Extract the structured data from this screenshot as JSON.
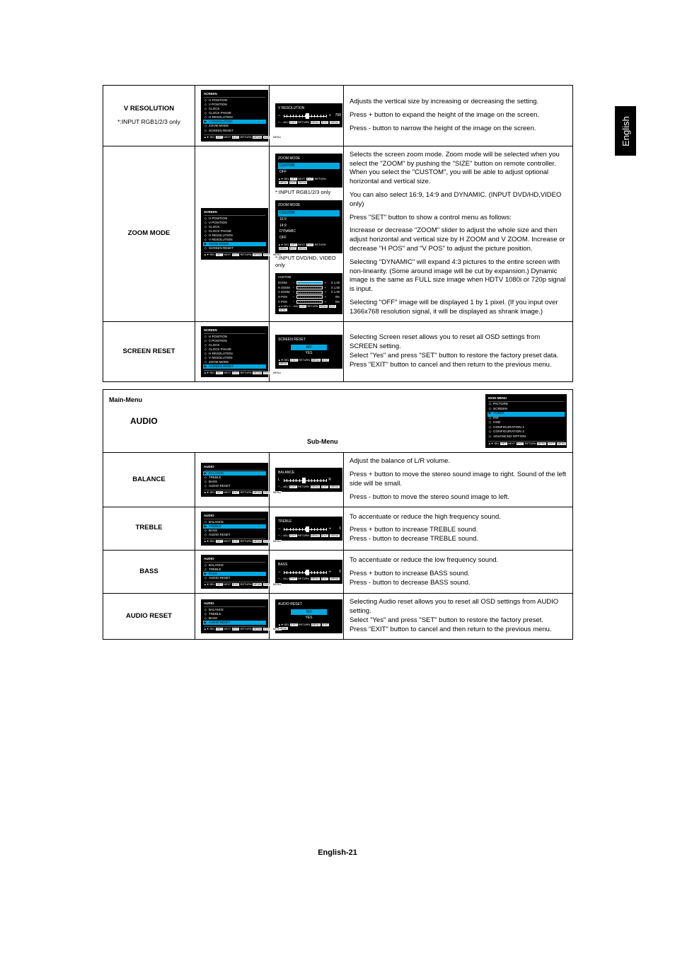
{
  "side_tab": "English",
  "page_number": "English-21",
  "colors": {
    "highlight": "#00a9e0",
    "panel_bg": "#000000",
    "panel_fg": "#ffffff"
  },
  "screen_menu": {
    "header": "SCREEN",
    "items": [
      "H POSITION",
      "V POSITION",
      "CLOCK",
      "CLOCK PHASE",
      "H RESOLUTION",
      "V RESOLUTION",
      "ZOOM MODE",
      "SCREEN RESET"
    ],
    "footer": "▲▼:SEL SET:NEXT EXIT:RETURN MENU:EXIT MENU"
  },
  "rows_screen": [
    {
      "title": "V RESOLUTION",
      "sub": "*:INPUT RGB1/2/3 only",
      "menu_hl": "V RESOLUTION",
      "right": {
        "type": "slider",
        "title": "V RESOLUTION",
        "knob_pct": 50,
        "value": "768",
        "minus": "−",
        "plus": "+"
      },
      "desc": [
        "Adjusts the vertical size by increasing or decreasing the setting.",
        "Press + button to expand the height of the image on the screen.",
        "Press - button to narrow the height of the image on the screen."
      ]
    },
    {
      "title": "ZOOM MODE",
      "menu_hl": "ZOOM MODE",
      "right_stack": [
        {
          "type": "optbox",
          "title": "ZOOM MODE",
          "opts": [
            "CUSTOM",
            "OFF"
          ],
          "hl": "CUSTOM",
          "caption": "*:INPUT RGB1/2/3 only"
        },
        {
          "type": "optbox",
          "title": "ZOOM MODE",
          "opts": [
            "CUSTOM",
            "16:9",
            "14:9",
            "DYNAMIC",
            "OFF"
          ],
          "hl": "CUSTOM",
          "caption": "*:INPUT DVD/HD, VIDEO only"
        },
        {
          "type": "zoomsliders",
          "title": "CUSTOM",
          "rows": [
            {
              "lbl": "ZOOM",
              "v": "X 1.00",
              "first": true
            },
            {
              "lbl": "H ZOOM",
              "v": "X 1.00"
            },
            {
              "lbl": "V ZOOM",
              "v": "X 1.00"
            },
            {
              "lbl": "H POS",
              "v": "0%"
            },
            {
              "lbl": "V POS",
              "v": "0%"
            }
          ]
        }
      ],
      "desc": [
        "Selects the screen zoom mode. Zoom mode will be selected when you select the \"ZOOM\" by pushing the \"SIZE\" button on remote controller.\nWhen you select the \"CUSTOM\", you will be able to adjust optional horizontal and vertical size.",
        "You can also select 16:9, 14:9 and DYNAMIC. (INPUT DVD/HD,VIDEO only)",
        "Press \"SET\" button to show a control menu as follows:",
        "Increase or decrease \"ZOOM\" slider to adjust the whole size and then adjust horizontal and vertical size by H ZOOM and V ZOOM. Increase or decrease \"H POS\" and \"V POS\" to adjust the picture position.",
        "Selecting \"DYNAMIC\" will expand 4:3 pictures to the entire screen with non-linearity. (Some around image will be cut by expansion.) Dynamic image is the same as FULL size image when HDTV 1080i or 720p signal is input.",
        "Selecting \"OFF\" image will be displayed 1 by 1 pixel. (If you input over 1366x768 resolution signal, it will be displayed as shrank image.)"
      ]
    },
    {
      "title": "SCREEN RESET",
      "menu_hl": "SCREEN RESET",
      "right": {
        "type": "yesno",
        "title": "SCREEN RESET",
        "opts": [
          "NO",
          "YES"
        ],
        "hl": "NO"
      },
      "desc": [
        "Selecting Screen reset allows you to reset all OSD settings from SCREEN setting.\nSelect \"Yes\" and press \"SET\" button to restore the factory preset data.\nPress \"EXIT\" button to cancel and then return to the previous menu."
      ]
    }
  ],
  "main_menu_panel": {
    "main_label": "Main-Menu",
    "audio_label": "AUDIO",
    "sub_label": "Sub-Menu",
    "header": "MAIN MENU",
    "items": [
      "PICTURE",
      "SCREEN",
      "AUDIO",
      "PIP",
      "OSD",
      "CONFIGURATION 1",
      "CONFIGURATION 2",
      "ADVANCED OPTION"
    ],
    "hl": "AUDIO",
    "footer": "▲▼:SEL SET:NEXT EXIT:RETURN MENU:EXIT MENU"
  },
  "audio_menu": {
    "header": "AUDIO",
    "items": [
      "BALANCE",
      "TREBLE",
      "BASS",
      "AUDIO RESET"
    ],
    "footer": "▲▼:SEL SET:NEXT EXIT:RETURN MENU:EXIT MENU"
  },
  "rows_audio": [
    {
      "title": "BALANCE",
      "menu_hl": "BALANCE",
      "right": {
        "type": "slider",
        "title": "BALANCE",
        "knob_pct": 42,
        "left_lbl": "L",
        "right_lbl": "R",
        "minus": "",
        "plus": "",
        "value": ""
      },
      "desc": [
        "Adjust the balance of L/R volume.",
        "Press + button to move the stereo sound image to right. Sound of the left side will be small.",
        "Press - button to move the stereo sound image to left."
      ]
    },
    {
      "title": "TREBLE",
      "menu_hl": "TREBLE",
      "right": {
        "type": "slider",
        "title": "TREBLE",
        "knob_pct": 50,
        "value": "0",
        "minus": "−",
        "plus": "+"
      },
      "desc": [
        "To accentuate or reduce the high frequency sound.",
        "Press + button to increase TREBLE sound.\nPress - button to decrease TREBLE sound."
      ]
    },
    {
      "title": "BASS",
      "menu_hl": "BASS",
      "right": {
        "type": "slider",
        "title": "BASS",
        "knob_pct": 50,
        "value": "0",
        "minus": "−",
        "plus": "+"
      },
      "desc": [
        "To accentuate or reduce the low frequency sound.",
        "Press + button to increase BASS sound.\nPress - button to decrease BASS sound."
      ]
    },
    {
      "title": "AUDIO RESET",
      "menu_hl": "AUDIO RESET",
      "right": {
        "type": "yesno",
        "title": "AUDIO RESET",
        "opts": [
          "NO",
          "YES"
        ],
        "hl": "NO"
      },
      "desc": [
        "Selecting Audio reset allows you to reset all OSD settings from AUDIO setting.\nSelect \"Yes\" and press \"SET\" button to restore the factory preset.\nPress \"EXIT\" button to cancel and then return to the previous menu."
      ]
    }
  ]
}
